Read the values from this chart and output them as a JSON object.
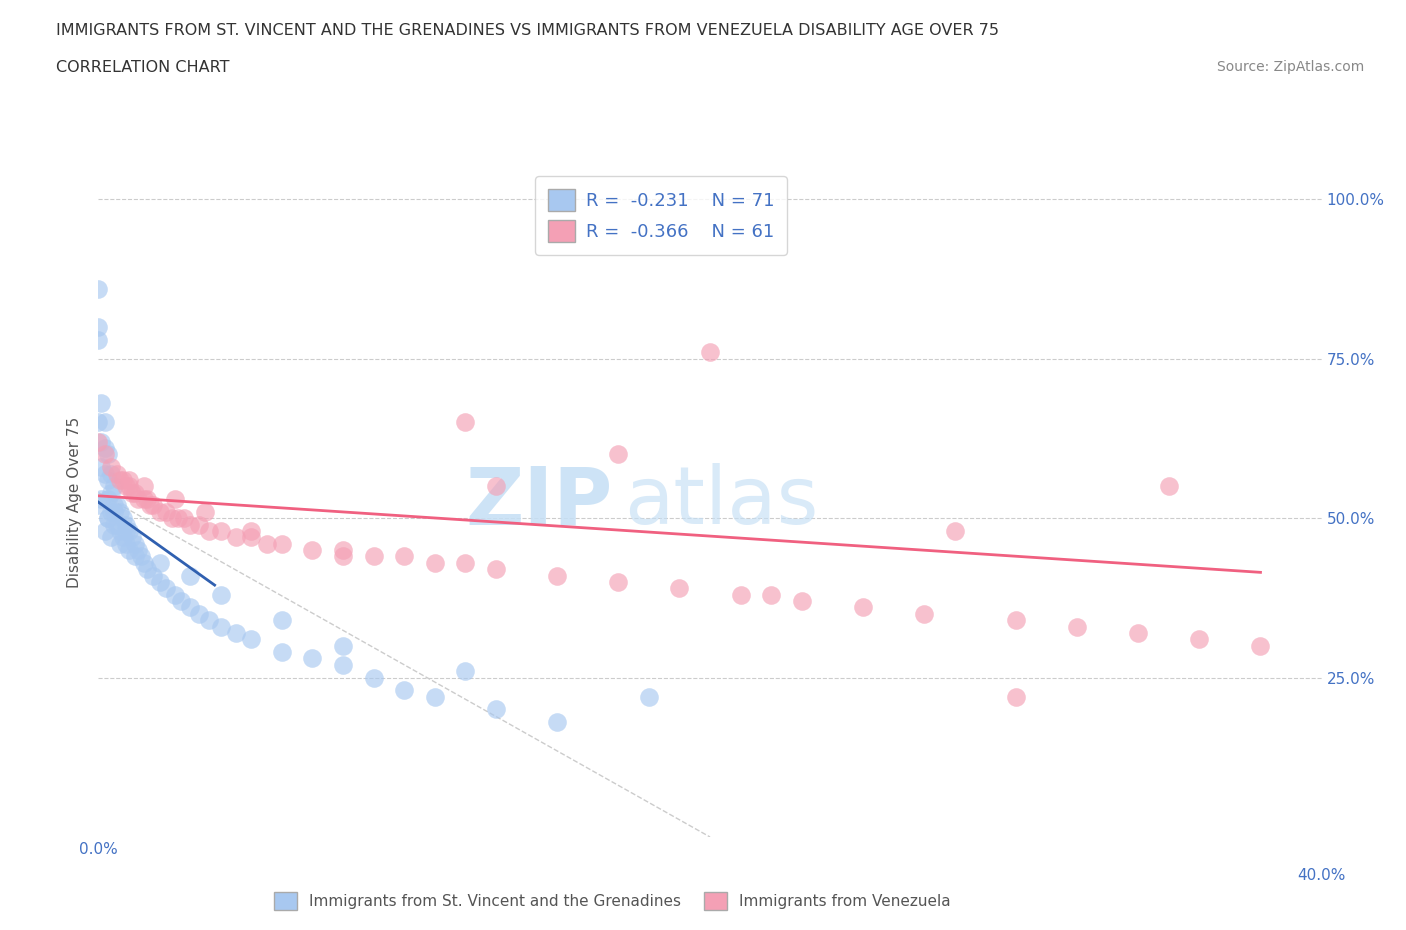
{
  "title1": "IMMIGRANTS FROM ST. VINCENT AND THE GRENADINES VS IMMIGRANTS FROM VENEZUELA DISABILITY AGE OVER 75",
  "title2": "CORRELATION CHART",
  "source": "Source: ZipAtlas.com",
  "ylabel": "Disability Age Over 75",
  "legend1_label": "Immigrants from St. Vincent and the Grenadines",
  "legend2_label": "Immigrants from Venezuela",
  "r1": -0.231,
  "n1": 71,
  "r2": -0.366,
  "n2": 61,
  "color1": "#a8c8f0",
  "color2": "#f4a0b5",
  "line_color1": "#3060b0",
  "line_color2": "#f06080",
  "watermark_zip": "ZIP",
  "watermark_atlas": "atlas",
  "xlim": [
    0.0,
    0.4
  ],
  "ylim": [
    0.0,
    1.05
  ],
  "blue_x": [
    0.0,
    0.0,
    0.0,
    0.001,
    0.001,
    0.001,
    0.002,
    0.002,
    0.002,
    0.003,
    0.003,
    0.003,
    0.003,
    0.004,
    0.004,
    0.004,
    0.005,
    0.005,
    0.005,
    0.006,
    0.006,
    0.007,
    0.007,
    0.008,
    0.008,
    0.009,
    0.009,
    0.01,
    0.01,
    0.011,
    0.012,
    0.013,
    0.014,
    0.015,
    0.016,
    0.018,
    0.02,
    0.022,
    0.025,
    0.027,
    0.03,
    0.033,
    0.036,
    0.04,
    0.045,
    0.05,
    0.06,
    0.07,
    0.08,
    0.09,
    0.1,
    0.11,
    0.13,
    0.15,
    0.0,
    0.0,
    0.001,
    0.002,
    0.003,
    0.004,
    0.005,
    0.007,
    0.009,
    0.012,
    0.02,
    0.03,
    0.04,
    0.06,
    0.08,
    0.12,
    0.18
  ],
  "blue_y": [
    0.86,
    0.8,
    0.65,
    0.68,
    0.62,
    0.58,
    0.65,
    0.61,
    0.57,
    0.6,
    0.56,
    0.53,
    0.5,
    0.57,
    0.54,
    0.51,
    0.55,
    0.52,
    0.49,
    0.52,
    0.49,
    0.51,
    0.48,
    0.5,
    0.47,
    0.49,
    0.46,
    0.48,
    0.45,
    0.47,
    0.46,
    0.45,
    0.44,
    0.43,
    0.42,
    0.41,
    0.4,
    0.39,
    0.38,
    0.37,
    0.36,
    0.35,
    0.34,
    0.33,
    0.32,
    0.31,
    0.29,
    0.28,
    0.27,
    0.25,
    0.23,
    0.22,
    0.2,
    0.18,
    0.78,
    0.52,
    0.53,
    0.48,
    0.5,
    0.47,
    0.51,
    0.46,
    0.48,
    0.44,
    0.43,
    0.41,
    0.38,
    0.34,
    0.3,
    0.26,
    0.22
  ],
  "pink_x": [
    0.0,
    0.002,
    0.004,
    0.006,
    0.007,
    0.008,
    0.009,
    0.01,
    0.011,
    0.012,
    0.013,
    0.015,
    0.016,
    0.017,
    0.018,
    0.02,
    0.022,
    0.024,
    0.026,
    0.028,
    0.03,
    0.033,
    0.036,
    0.04,
    0.045,
    0.05,
    0.055,
    0.06,
    0.07,
    0.08,
    0.09,
    0.1,
    0.11,
    0.12,
    0.13,
    0.15,
    0.17,
    0.19,
    0.21,
    0.23,
    0.25,
    0.27,
    0.3,
    0.32,
    0.34,
    0.36,
    0.38,
    0.01,
    0.015,
    0.025,
    0.035,
    0.05,
    0.08,
    0.13,
    0.2,
    0.28,
    0.35,
    0.12,
    0.17,
    0.22,
    0.3
  ],
  "pink_y": [
    0.62,
    0.6,
    0.58,
    0.57,
    0.56,
    0.56,
    0.55,
    0.55,
    0.54,
    0.54,
    0.53,
    0.53,
    0.53,
    0.52,
    0.52,
    0.51,
    0.51,
    0.5,
    0.5,
    0.5,
    0.49,
    0.49,
    0.48,
    0.48,
    0.47,
    0.47,
    0.46,
    0.46,
    0.45,
    0.45,
    0.44,
    0.44,
    0.43,
    0.43,
    0.42,
    0.41,
    0.4,
    0.39,
    0.38,
    0.37,
    0.36,
    0.35,
    0.34,
    0.33,
    0.32,
    0.31,
    0.3,
    0.56,
    0.55,
    0.53,
    0.51,
    0.48,
    0.44,
    0.55,
    0.76,
    0.48,
    0.55,
    0.65,
    0.6,
    0.38,
    0.22
  ]
}
